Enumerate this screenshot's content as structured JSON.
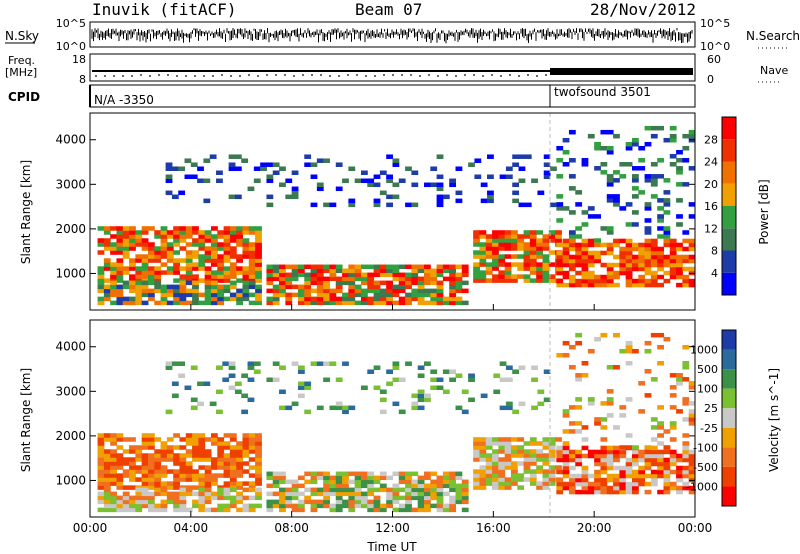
{
  "header": {
    "station": "Inuvik (fitACF)",
    "beam": "Beam 07",
    "date": "28/Nov/2012"
  },
  "panels": {
    "nsky": {
      "label": "N.Sky",
      "ticks": [
        "10^5",
        "10^0"
      ],
      "right_label": "N.Search",
      "right_ticks": [
        "10^5",
        "10^0"
      ]
    },
    "freq": {
      "label_line1": "Freq.",
      "label_line2": "[MHz]",
      "ticks": [
        "18",
        "8"
      ],
      "right_label": "Nave",
      "right_ticks": [
        "60",
        "0"
      ]
    },
    "cpid": {
      "label": "CPID",
      "segments": [
        "N/A -3350",
        "twofsound 3501"
      ]
    }
  },
  "colors": {
    "power": [
      "#0000ff",
      "#1e3ca8",
      "#3c7850",
      "#32a040",
      "#f0a000",
      "#f07000",
      "#f03000",
      "#ff0000"
    ],
    "velocity": [
      "#1e3ca8",
      "#2a6a9c",
      "#3c9048",
      "#7ac030",
      "#c8c8c8",
      "#f0a000",
      "#f07020",
      "#f04000",
      "#ff0000"
    ]
  },
  "chart_data": [
    {
      "type": "heatmap",
      "title": "",
      "ylabel": "Slant Range [km]",
      "xlabel": "",
      "ylim": [
        180,
        4600
      ],
      "xlim": [
        "00:00",
        "24:00"
      ],
      "x_ticks": [
        "00:00",
        "04:00",
        "08:00",
        "12:00",
        "16:00",
        "20:00",
        "00:00"
      ],
      "y_ticks": [
        "1000",
        "2000",
        "3000",
        "4000"
      ],
      "colorbar": {
        "label": "Power [dB]",
        "ticks": [
          "4",
          "8",
          "12",
          "16",
          "20",
          "24",
          "28"
        ]
      }
    },
    {
      "type": "heatmap",
      "title": "",
      "ylabel": "Slant Range [km]",
      "xlabel": "Time UT",
      "ylim": [
        180,
        4600
      ],
      "xlim": [
        "00:00",
        "24:00"
      ],
      "x_ticks": [
        "00:00",
        "04:00",
        "08:00",
        "12:00",
        "16:00",
        "20:00",
        "00:00"
      ],
      "y_ticks": [
        "1000",
        "2000",
        "3000",
        "4000"
      ],
      "colorbar": {
        "label": "Velocity [m s^-1]",
        "ticks": [
          "1000",
          "500",
          "100",
          "25",
          "-25",
          "-100",
          "-500",
          "-1000"
        ]
      }
    }
  ]
}
